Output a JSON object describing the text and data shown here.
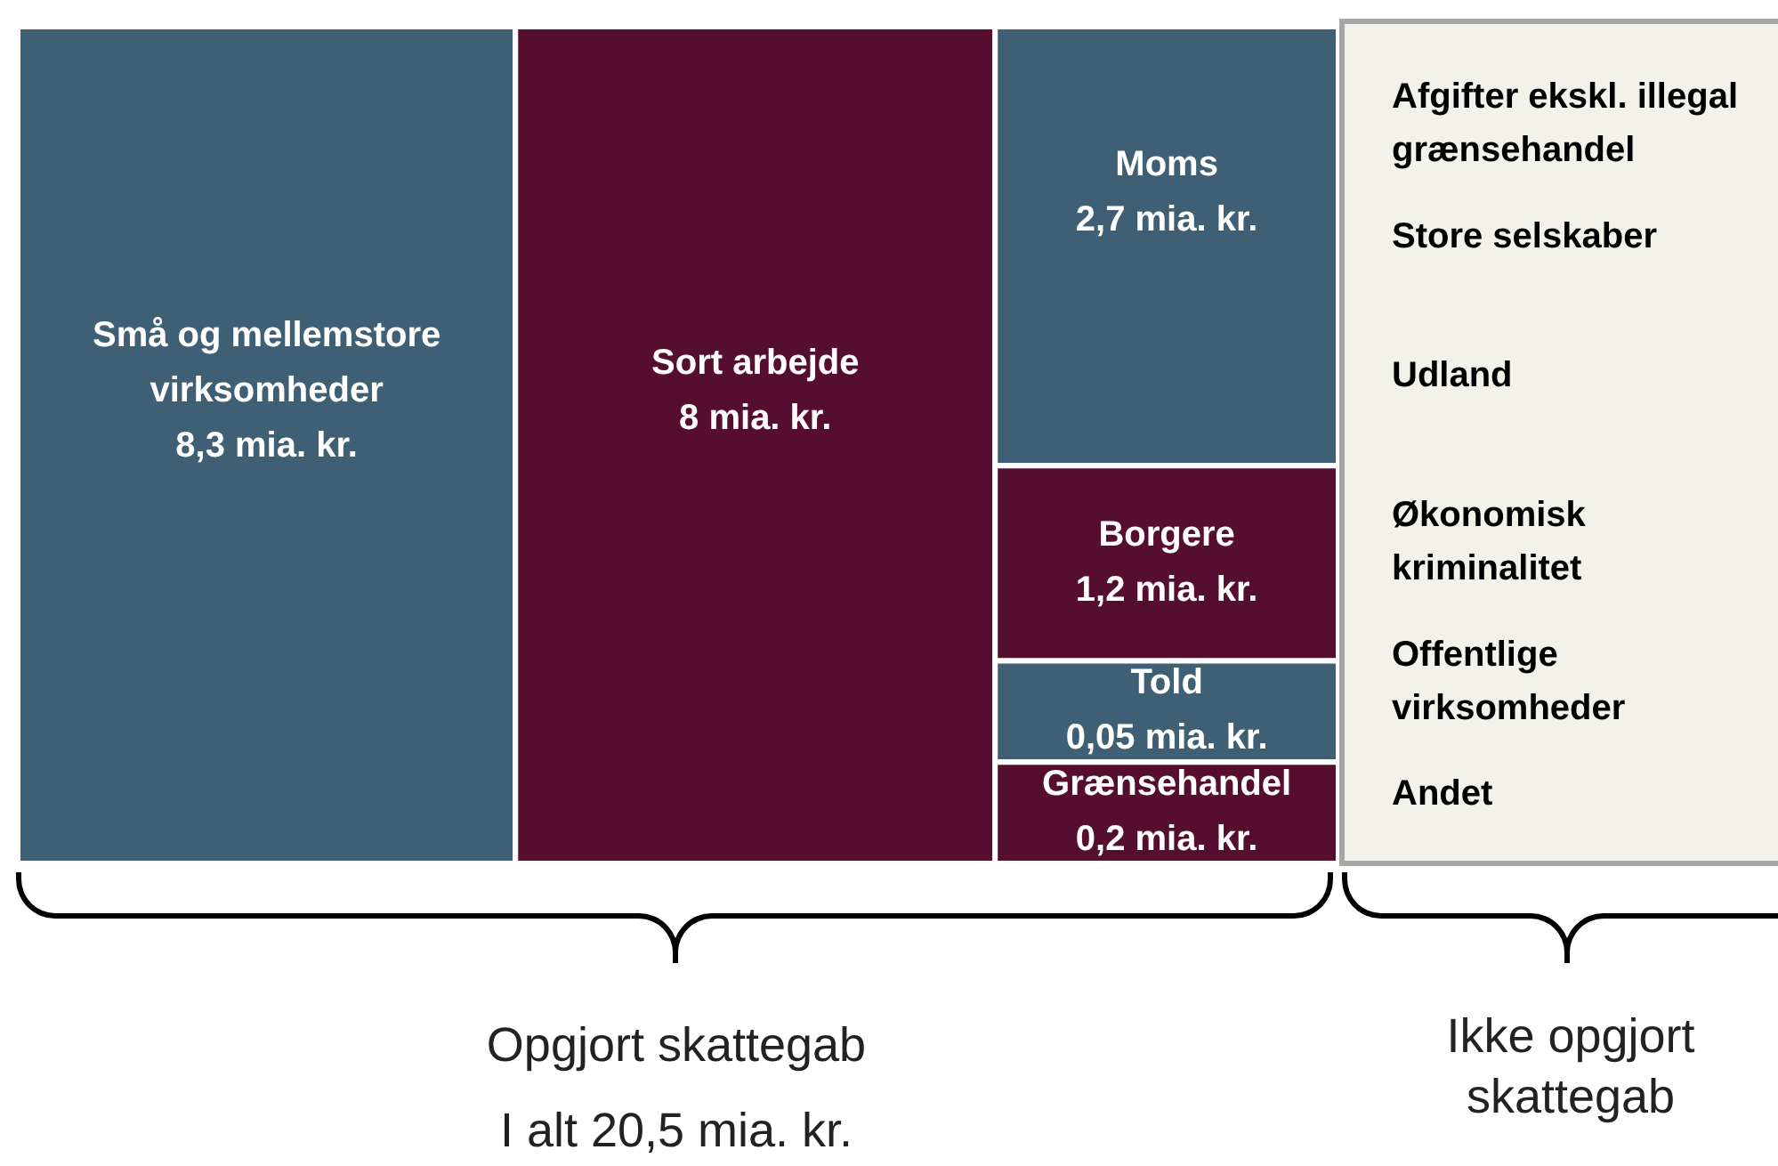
{
  "chart_data": {
    "type": "other",
    "categories": [
      "Små og mellemstore virksomheder",
      "Sort arbejde",
      "Moms",
      "Borgere",
      "Told",
      "Grænsehandel",
      "Afgifter ekskl. illegal grænsehandel",
      "Store selskaber",
      "Udland",
      "Økonomisk kriminalitet",
      "Offentlige virksomheder",
      "Andet"
    ],
    "values": [
      8.3,
      8,
      2.7,
      1.2,
      0.05,
      0.2,
      null,
      null,
      null,
      null,
      null,
      null
    ],
    "value_labels": [
      "8,3 mia. kr.",
      "8 mia. kr.",
      "2,7 mia. kr.",
      "1,2 mia. kr.",
      "0,05 mia. kr.",
      "0,2 mia. kr.",
      null,
      null,
      null,
      null,
      null,
      null
    ],
    "colors": [
      "#3f5f74",
      "#560e2e",
      "#3f5f74",
      "#560e2e",
      "#3f5f74",
      "#560e2e",
      "#f3f2ea",
      "#f3f2ea",
      "#f3f2ea",
      "#f3f2ea",
      "#f3f2ea",
      "#f3f2ea"
    ],
    "annotations": [
      "Opgjort skattegab",
      "I alt 20,5 mia. kr.",
      "Ikke opgjort skattegab"
    ]
  }
}
